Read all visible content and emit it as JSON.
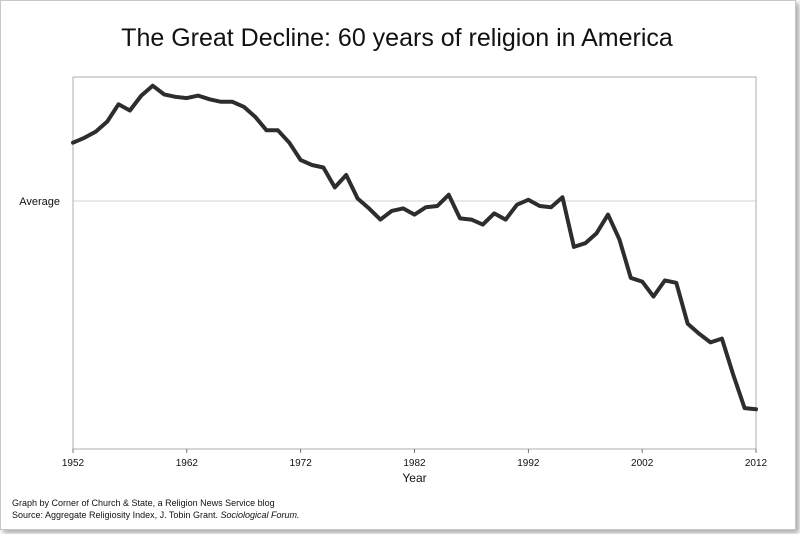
{
  "chart_data": {
    "type": "line",
    "title": "The Great Decline: 60 years of religion in America",
    "xlabel": "Year",
    "ylabel": "",
    "xlim": [
      1952,
      2012
    ],
    "ylim": [
      -2.0,
      1.0
    ],
    "reference_line": {
      "label": "Average",
      "value": 0
    },
    "x_ticks": [
      1952,
      1962,
      1972,
      1982,
      1992,
      2002,
      2012
    ],
    "series": [
      {
        "name": "Aggregate Religiosity Index",
        "x": [
          1952,
          1953,
          1954,
          1955,
          1956,
          1957,
          1958,
          1959,
          1960,
          1961,
          1962,
          1963,
          1964,
          1965,
          1966,
          1967,
          1968,
          1969,
          1970,
          1971,
          1972,
          1973,
          1974,
          1975,
          1976,
          1977,
          1978,
          1979,
          1980,
          1981,
          1982,
          1983,
          1984,
          1985,
          1986,
          1987,
          1988,
          1989,
          1990,
          1991,
          1992,
          1993,
          1994,
          1995,
          1996,
          1997,
          1998,
          1999,
          2000,
          2001,
          2002,
          2003,
          2004,
          2005,
          2006,
          2007,
          2008,
          2009,
          2010,
          2011,
          2012
        ],
        "values": [
          0.47,
          0.51,
          0.56,
          0.64,
          0.78,
          0.73,
          0.85,
          0.93,
          0.86,
          0.84,
          0.83,
          0.85,
          0.82,
          0.8,
          0.8,
          0.76,
          0.68,
          0.57,
          0.57,
          0.47,
          0.33,
          0.29,
          0.27,
          0.11,
          0.21,
          0.02,
          -0.06,
          -0.15,
          -0.08,
          -0.06,
          -0.11,
          -0.05,
          -0.04,
          0.05,
          -0.14,
          -0.15,
          -0.19,
          -0.1,
          -0.15,
          -0.03,
          0.01,
          -0.04,
          -0.05,
          0.03,
          -0.37,
          -0.34,
          -0.26,
          -0.11,
          -0.31,
          -0.62,
          -0.65,
          -0.77,
          -0.64,
          -0.66,
          -0.99,
          -1.07,
          -1.14,
          -1.11,
          -1.4,
          -1.67,
          -1.68
        ]
      }
    ],
    "footer": {
      "credit": "Graph by Corner of Church & State, a Religion News Service blog",
      "source_prefix": "Source: Aggregate Religiosity Index, J. Tobin Grant.",
      "source_journal": "Sociological Forum."
    }
  }
}
